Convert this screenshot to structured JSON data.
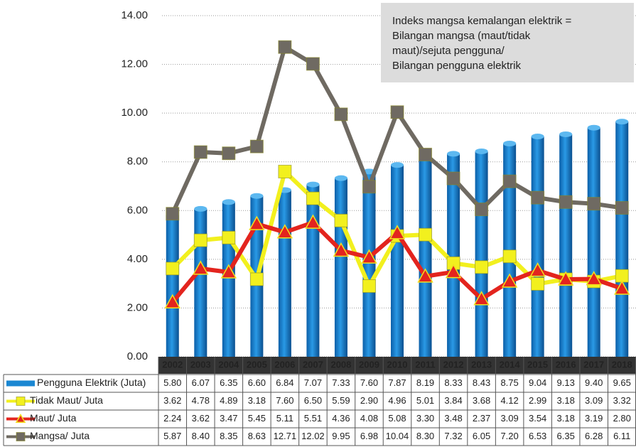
{
  "chart_data": {
    "type": "combo",
    "annotation": [
      "Indeks mangsa kemalangan elektrik =",
      "Bilangan mangsa (maut/tidak",
      "maut)/sejuta pengguna/",
      "Bilangan pengguna elektrik"
    ],
    "categories": [
      "2002",
      "2003",
      "2004",
      "2005",
      "2006",
      "2007",
      "2008",
      "2009",
      "2010",
      "2011",
      "2012",
      "2013",
      "2014",
      "2015",
      "2016",
      "2017",
      "2018"
    ],
    "ylim": [
      0,
      14
    ],
    "yticks": [
      {
        "value": 0,
        "label": "0.00"
      },
      {
        "value": 2,
        "label": "2.00"
      },
      {
        "value": 4,
        "label": "4.00"
      },
      {
        "value": 6,
        "label": "6.00"
      },
      {
        "value": 8,
        "label": "8.00"
      },
      {
        "value": 10,
        "label": "10.00"
      },
      {
        "value": 12,
        "label": "12.00"
      },
      {
        "value": 14,
        "label": "14.00"
      }
    ],
    "grid": true,
    "series": [
      {
        "name": "Pengguna Elektrik (Juta)",
        "type": "bar",
        "color": "#1a87d2",
        "values": [
          5.8,
          6.07,
          6.35,
          6.6,
          6.84,
          7.07,
          7.33,
          7.6,
          7.87,
          8.19,
          8.33,
          8.43,
          8.75,
          9.04,
          9.13,
          9.4,
          9.65
        ],
        "value_labels": [
          "5.80",
          "6.07",
          "6.35",
          "6.60",
          "6.84",
          "7.07",
          "7.33",
          "7.60",
          "7.87",
          "8.19",
          "8.33",
          "8.43",
          "8.75",
          "9.04",
          "9.13",
          "9.40",
          "9.65"
        ]
      },
      {
        "name": "Tidak Maut/ Juta",
        "type": "line",
        "marker": "square",
        "color": "#f2f01e",
        "values": [
          3.62,
          4.78,
          4.89,
          3.18,
          7.6,
          6.5,
          5.59,
          2.9,
          4.96,
          5.01,
          3.84,
          3.68,
          4.12,
          2.99,
          3.18,
          3.09,
          3.32
        ],
        "value_labels": [
          "3.62",
          "4.78",
          "4.89",
          "3.18",
          "7.60",
          "6.50",
          "5.59",
          "2.90",
          "4.96",
          "5.01",
          "3.84",
          "3.68",
          "4.12",
          "2.99",
          "3.18",
          "3.09",
          "3.32"
        ]
      },
      {
        "name": "Maut/ Juta",
        "type": "line",
        "marker": "triangle",
        "color": "#e3241e",
        "values": [
          2.24,
          3.62,
          3.47,
          5.45,
          5.11,
          5.51,
          4.36,
          4.08,
          5.08,
          3.3,
          3.48,
          2.37,
          3.09,
          3.54,
          3.18,
          3.19,
          2.8
        ],
        "value_labels": [
          "2.24",
          "3.62",
          "3.47",
          "5.45",
          "5.11",
          "5.51",
          "4.36",
          "4.08",
          "5.08",
          "3.30",
          "3.48",
          "2.37",
          "3.09",
          "3.54",
          "3.18",
          "3.19",
          "2.80"
        ]
      },
      {
        "name": "Mangsa/ Juta",
        "type": "line",
        "marker": "square",
        "color": "#6f6a62",
        "values": [
          5.87,
          8.4,
          8.35,
          8.63,
          12.71,
          12.02,
          9.95,
          6.98,
          10.04,
          8.3,
          7.32,
          6.05,
          7.2,
          6.53,
          6.35,
          6.28,
          6.11
        ],
        "value_labels": [
          "5.87",
          "8.40",
          "8.35",
          "8.63",
          "12.71",
          "12.02",
          "9.95",
          "6.98",
          "10.04",
          "8.30",
          "7.32",
          "6.05",
          "7.20",
          "6.53",
          "6.35",
          "6.28",
          "6.11"
        ]
      }
    ]
  }
}
